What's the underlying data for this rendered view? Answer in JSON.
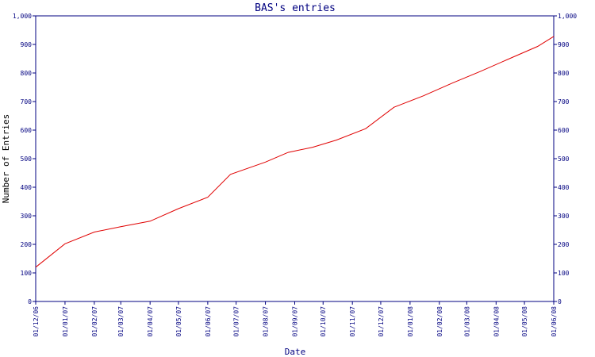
{
  "chart_data": {
    "type": "line",
    "title": "BAS's entries",
    "xlabel": "Date",
    "ylabel": "Number of Entries",
    "x_tick_labels": [
      "01/12/06",
      "01/01/07",
      "01/02/07",
      "01/03/07",
      "01/04/07",
      "01/05/07",
      "01/06/07",
      "01/07/07",
      "01/08/07",
      "01/09/07",
      "01/10/07",
      "01/11/07",
      "01/12/07",
      "01/01/08",
      "01/02/08",
      "01/03/08",
      "01/04/08",
      "01/05/08",
      "01/06/08"
    ],
    "y_tick_labels": [
      "0",
      "100",
      "200",
      "300",
      "400",
      "500",
      "600",
      "700",
      "800",
      "900",
      "1,000"
    ],
    "ylim": [
      0,
      1000
    ],
    "xlim": [
      "2006-12-01",
      "2008-06-01"
    ],
    "grid": false,
    "series": [
      {
        "color": "#e00000",
        "points": [
          {
            "x": "2006-12-01",
            "y": 120
          },
          {
            "x": "2007-01-01",
            "y": 202
          },
          {
            "x": "2007-02-01",
            "y": 243
          },
          {
            "x": "2007-03-01",
            "y": 262
          },
          {
            "x": "2007-04-01",
            "y": 281
          },
          {
            "x": "2007-05-01",
            "y": 325
          },
          {
            "x": "2007-06-01",
            "y": 365
          },
          {
            "x": "2007-06-25",
            "y": 445
          },
          {
            "x": "2007-08-01",
            "y": 488
          },
          {
            "x": "2007-08-25",
            "y": 522
          },
          {
            "x": "2007-09-20",
            "y": 540
          },
          {
            "x": "2007-10-15",
            "y": 565
          },
          {
            "x": "2007-11-15",
            "y": 605
          },
          {
            "x": "2007-12-15",
            "y": 680
          },
          {
            "x": "2008-01-15",
            "y": 720
          },
          {
            "x": "2008-02-15",
            "y": 765
          },
          {
            "x": "2008-03-15",
            "y": 805
          },
          {
            "x": "2008-04-15",
            "y": 850
          },
          {
            "x": "2008-05-15",
            "y": 893
          },
          {
            "x": "2008-06-01",
            "y": 928
          }
        ]
      }
    ]
  },
  "colors": {
    "axis": "#000080",
    "line": "#e00000",
    "background": "#ffffff"
  }
}
